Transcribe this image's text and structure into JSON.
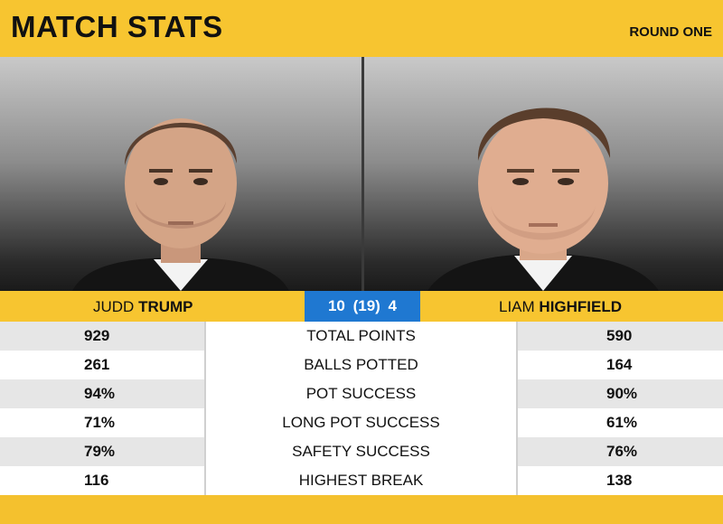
{
  "header": {
    "title": "MATCH STATS",
    "round": "ROUND ONE"
  },
  "players": {
    "left": {
      "first": "JUDD",
      "last": "TRUMP"
    },
    "right": {
      "first": "LIAM",
      "last": "HIGHFIELD"
    }
  },
  "score": "10 (19) 4",
  "stats": [
    {
      "label": "TOTAL POINTS",
      "left": "929",
      "right": "590"
    },
    {
      "label": "BALLS POTTED",
      "left": "261",
      "right": "164"
    },
    {
      "label": "POT SUCCESS",
      "left": "94%",
      "right": "90%"
    },
    {
      "label": "LONG POT SUCCESS",
      "left": "71%",
      "right": "61%"
    },
    {
      "label": "SAFETY SUCCESS",
      "left": "79%",
      "right": "76%"
    },
    {
      "label": "HIGHEST BREAK",
      "left": "116",
      "right": "138"
    }
  ],
  "colors": {
    "accent": "#f7c530",
    "score_bg": "#1f78d1"
  }
}
